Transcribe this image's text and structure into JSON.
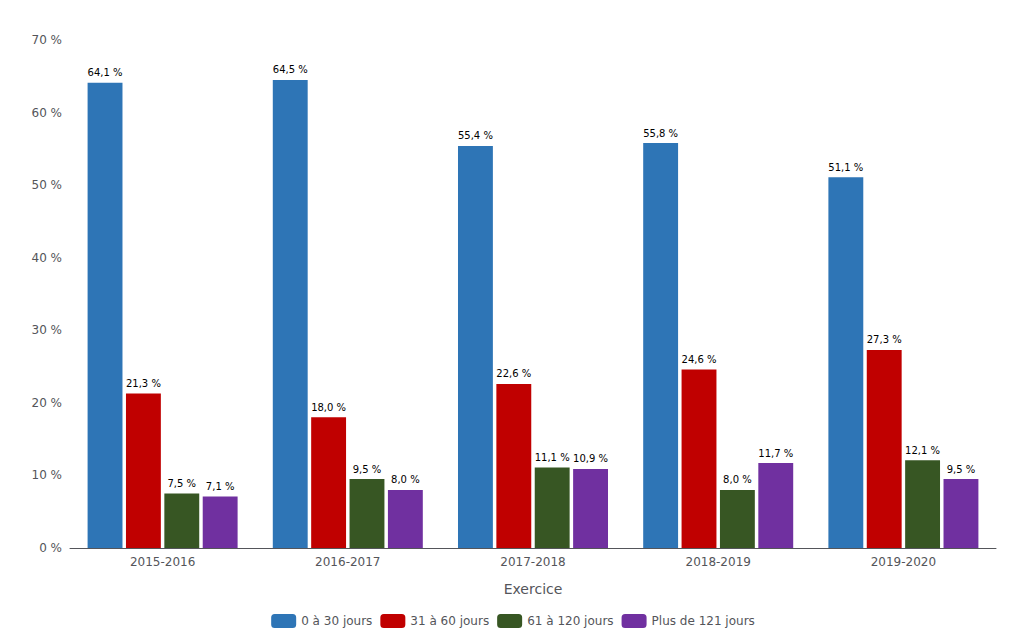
{
  "chart_data": {
    "type": "bar",
    "categories": [
      "2015-2016",
      "2016-2017",
      "2017-2018",
      "2018-2019",
      "2019-2020"
    ],
    "series": [
      {
        "name": "0 à 30 jours",
        "color": "#2E75B6",
        "values": [
          64.1,
          64.5,
          55.4,
          55.8,
          51.1
        ],
        "value_labels": [
          "64,1 %",
          "64,5 %",
          "55,4 %",
          "55,8 %",
          "51,1 %"
        ]
      },
      {
        "name": "31 à 60 jours",
        "color": "#C00000",
        "values": [
          21.3,
          18.0,
          22.6,
          24.6,
          27.3
        ],
        "value_labels": [
          "21,3 %",
          "18,0 %",
          "22,6 %",
          "24,6 %",
          "27,3 %"
        ]
      },
      {
        "name": "61 à 120 jours",
        "color": "#375623",
        "values": [
          7.5,
          9.5,
          11.1,
          8.0,
          12.1
        ],
        "value_labels": [
          "7,5 %",
          "9,5 %",
          "11,1 %",
          "8,0 %",
          "12,1 %"
        ]
      },
      {
        "name": "Plus de 121 jours",
        "color": "#7030A0",
        "values": [
          7.1,
          8.0,
          10.9,
          11.7,
          9.5
        ],
        "value_labels": [
          "7,1 %",
          "8,0 %",
          "10,9 %",
          "11,7 %",
          "9,5 %"
        ]
      }
    ],
    "xlabel": "Exercice",
    "ylim": [
      0,
      70
    ],
    "yticks": [
      {
        "value": 0,
        "label": "0 %"
      },
      {
        "value": 10,
        "label": "10 %"
      },
      {
        "value": 20,
        "label": "20 %"
      },
      {
        "value": 30,
        "label": "30 %"
      },
      {
        "value": 40,
        "label": "40 %"
      },
      {
        "value": 50,
        "label": "50 %"
      },
      {
        "value": 60,
        "label": "60 %"
      },
      {
        "value": 70,
        "label": "70 %"
      }
    ],
    "grid": false,
    "legend": "bottom",
    "data_labels": true
  }
}
